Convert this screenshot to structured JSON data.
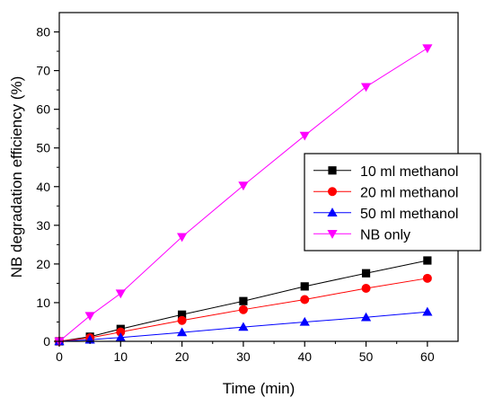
{
  "chart_data": {
    "type": "line",
    "xlabel": "Time (min)",
    "ylabel": "NB degradation efficiency (%)",
    "xlim": [
      0,
      65
    ],
    "ylim": [
      0,
      85
    ],
    "xticks": [
      0,
      10,
      20,
      30,
      40,
      50,
      60
    ],
    "yticks": [
      0,
      10,
      20,
      30,
      40,
      50,
      60,
      70,
      80
    ],
    "grid": false,
    "legend_position": "right",
    "x": [
      0,
      5,
      10,
      20,
      30,
      40,
      50,
      60
    ],
    "series": [
      {
        "name": "10 ml methanol",
        "marker": "square",
        "color": "#000000",
        "values": [
          0,
          1.2,
          3.2,
          6.9,
          10.4,
          14.2,
          17.6,
          20.9
        ]
      },
      {
        "name": "20 ml methanol",
        "marker": "circle",
        "color": "#ff0000",
        "values": [
          0,
          0.9,
          2.4,
          5.4,
          8.2,
          10.8,
          13.7,
          16.3
        ]
      },
      {
        "name": "50 ml methanol",
        "marker": "triangle-up",
        "color": "#0000ff",
        "values": [
          0,
          0.4,
          1.0,
          2.3,
          3.7,
          5.0,
          6.2,
          7.6
        ]
      },
      {
        "name": "NB only",
        "marker": "triangle-down",
        "color": "#ff00ff",
        "values": [
          0,
          6.6,
          12.4,
          27.0,
          40.3,
          53.2,
          65.8,
          75.8
        ]
      }
    ]
  }
}
